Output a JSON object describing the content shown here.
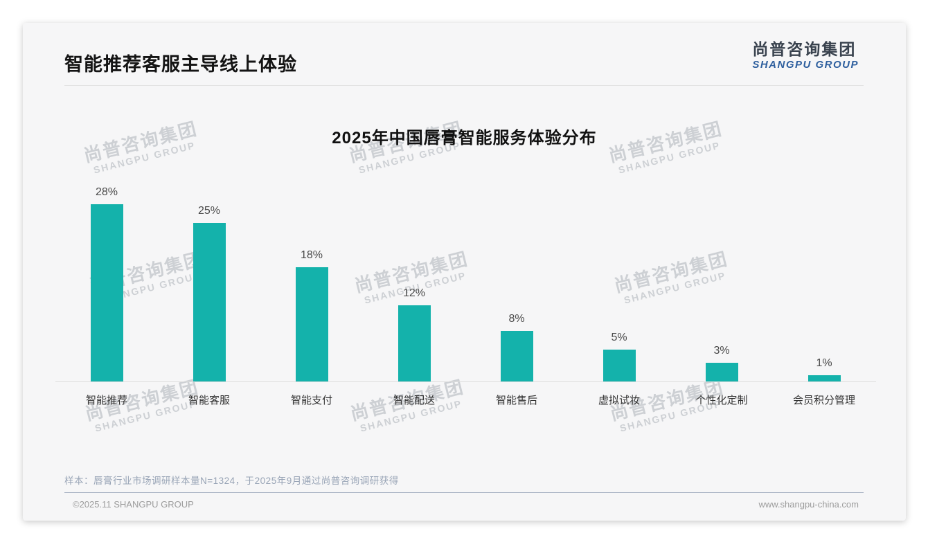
{
  "page": {
    "title": "智能推荐客服主导线上体验",
    "logo": {
      "cn": "尚普咨询集团",
      "en": "SHANGPU GROUP"
    },
    "watermark": {
      "cn": "尚普咨询集团",
      "en": "SHANGPU GROUP"
    },
    "footnote": "样本：唇膏行业市场调研样本量N=1324，于2025年9月通过尚普咨询调研获得",
    "footer": {
      "left": "©2025.11 SHANGPU GROUP",
      "right": "www.shangpu-china.com"
    }
  },
  "colors": {
    "bar": "#14b2ab",
    "logo_cn": "#39424e",
    "logo_en": "#2e5f9e",
    "footnote": "#98a4b6",
    "card_bg": "#f6f6f7"
  },
  "chart_data": {
    "type": "bar",
    "title": "2025年中国唇膏智能服务体验分布",
    "categories": [
      "智能推荐",
      "智能客服",
      "智能支付",
      "智能配送",
      "智能售后",
      "虚拟试妆",
      "个性化定制",
      "会员积分管理"
    ],
    "values": [
      28,
      25,
      18,
      12,
      8,
      5,
      3,
      1
    ],
    "unit": "%",
    "value_labels": true,
    "bar_color": "#14b2ab",
    "xlabel": "",
    "ylabel": "",
    "ylim": [
      0,
      30
    ],
    "grid": false,
    "legend": "none"
  }
}
